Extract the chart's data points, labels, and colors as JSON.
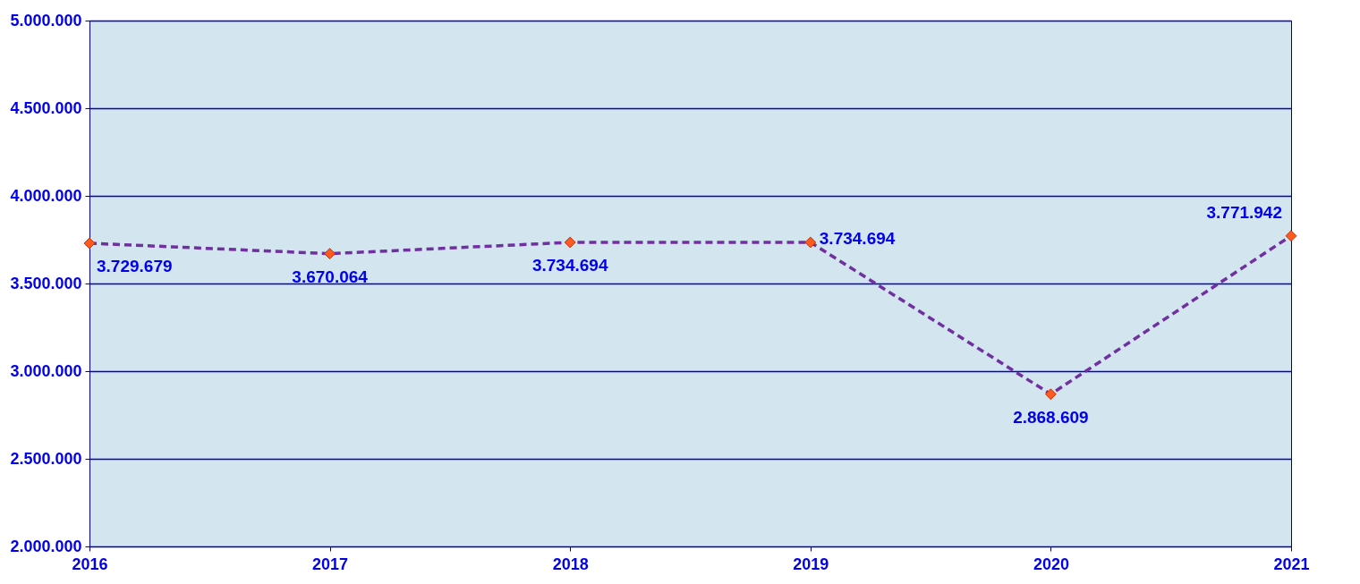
{
  "chart_data": {
    "type": "line",
    "categories": [
      "2016",
      "2017",
      "2018",
      "2019",
      "2020",
      "2021"
    ],
    "series": [
      {
        "color": "#7030a0",
        "values": [
          3729679,
          3670064,
          3734694,
          3734694,
          2868609,
          3771942
        ],
        "value_labels": [
          "3.729.679",
          "3.670.064",
          "3.734.694",
          "3.734.694",
          "2.868.609",
          "3.771.942"
        ]
      }
    ],
    "ylim": [
      2000000,
      5000000
    ],
    "yticks": [
      {
        "value": 2000000,
        "label": "2.000.000"
      },
      {
        "value": 2500000,
        "label": "2.500.000"
      },
      {
        "value": 3000000,
        "label": "3.000.000"
      },
      {
        "value": 3500000,
        "label": "3.500.000"
      },
      {
        "value": 4000000,
        "label": "4.000.000"
      },
      {
        "value": 4500000,
        "label": "4.500.000"
      },
      {
        "value": 5000000,
        "label": "5.000.000"
      }
    ],
    "grid": "y",
    "marker": "diamond",
    "line_style": "dashed"
  }
}
